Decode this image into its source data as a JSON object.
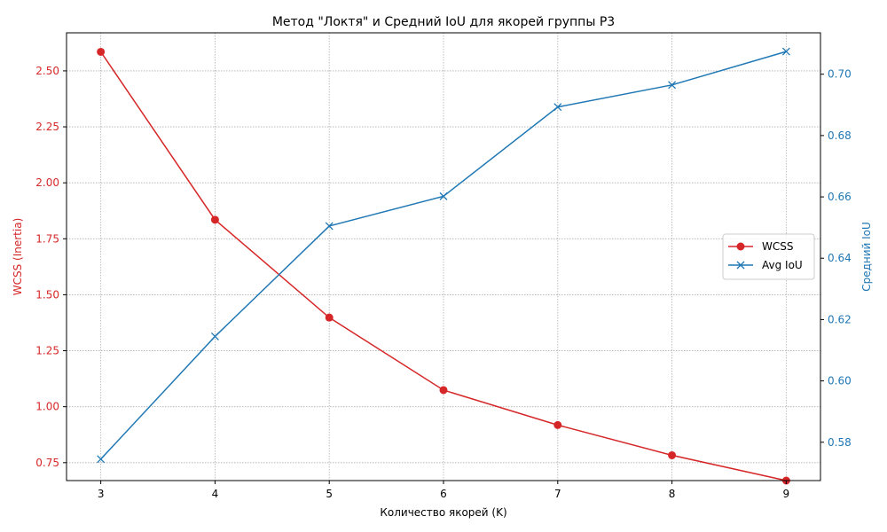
{
  "chart_data": {
    "type": "line",
    "title": "Метод \"Локтя\" и Средний IoU для якорей группы P3",
    "xlabel": "Количество якорей (K)",
    "ylabel_left": "WCSS (Inertia)",
    "ylabel_right": "Средний IoU",
    "x": [
      3,
      4,
      5,
      6,
      7,
      8,
      9
    ],
    "xlim": [
      2.7,
      9.3
    ],
    "x_ticks": [
      "3",
      "4",
      "5",
      "6",
      "7",
      "8",
      "9"
    ],
    "ylim_left": [
      0.67,
      2.67
    ],
    "ylim_right": [
      0.5675,
      0.7135
    ],
    "y_ticks_left": [
      "0.75",
      "1.00",
      "1.25",
      "1.50",
      "1.75",
      "2.00",
      "2.25",
      "2.50"
    ],
    "y_ticks_right": [
      "0.58",
      "0.60",
      "0.62",
      "0.64",
      "0.66",
      "0.68",
      "0.70"
    ],
    "grid": true,
    "legend_position": "center-right",
    "series": [
      {
        "name": "WCSS",
        "axis": "left",
        "marker": "circle",
        "color": "#d62728",
        "values": [
          2.585,
          1.835,
          1.398,
          1.074,
          0.918,
          0.783,
          0.67
        ]
      },
      {
        "name": "Avg IoU",
        "axis": "right",
        "marker": "x",
        "color": "#1f77b4",
        "values": [
          0.5745,
          0.6145,
          0.6505,
          0.6602,
          0.6893,
          0.6965,
          0.7074
        ]
      }
    ]
  }
}
